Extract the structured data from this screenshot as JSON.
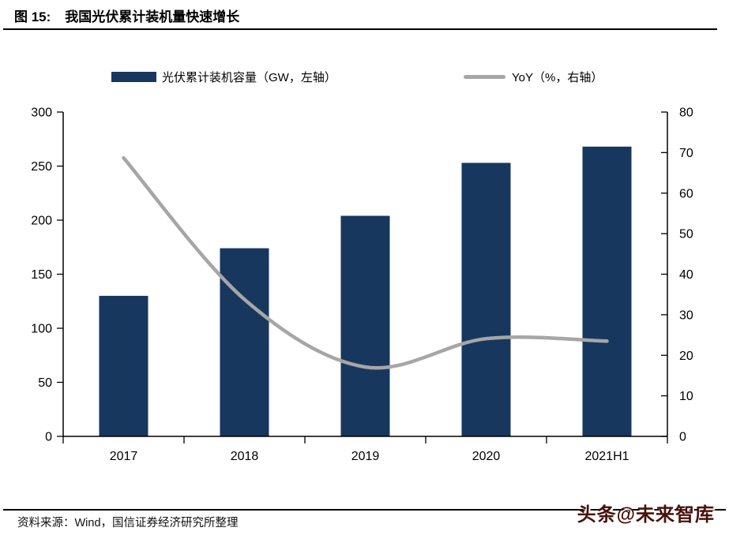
{
  "title": {
    "prefix": "图 15:",
    "text": "我国光伏累计装机量快速增长"
  },
  "legend": {
    "bar_label": "光伏累计装机容量（GW，左轴）",
    "line_label": "YoY（%，右轴）"
  },
  "chart_data": {
    "type": "bar",
    "title": "我国光伏累计装机量快速增长",
    "categories": [
      "2017",
      "2018",
      "2019",
      "2020",
      "2021H1"
    ],
    "series": [
      {
        "name": "光伏累计装机容量（GW，左轴）",
        "type": "bar",
        "axis": "left",
        "color": "#17375E",
        "values": [
          130,
          174,
          204,
          253,
          268
        ]
      },
      {
        "name": "YoY（%，右轴）",
        "type": "line",
        "axis": "right",
        "color": "#A6A6A6",
        "values": [
          68.7,
          33.8,
          17.1,
          24.1,
          23.5
        ]
      }
    ],
    "left_axis": {
      "min": 0,
      "max": 300,
      "step": 50,
      "ticks": [
        0,
        50,
        100,
        150,
        200,
        250,
        300
      ]
    },
    "right_axis": {
      "min": 0,
      "max": 80,
      "step": 10,
      "ticks": [
        0,
        10,
        20,
        30,
        40,
        50,
        60,
        70,
        80
      ]
    },
    "grid": false,
    "legend_position": "top",
    "xlabel": "",
    "ylabel": ""
  },
  "footer": {
    "source": "资料来源：Wind，国信证券经济研究所整理"
  },
  "watermark": {
    "text": "头条@未来智库",
    "color": "#47120B"
  }
}
